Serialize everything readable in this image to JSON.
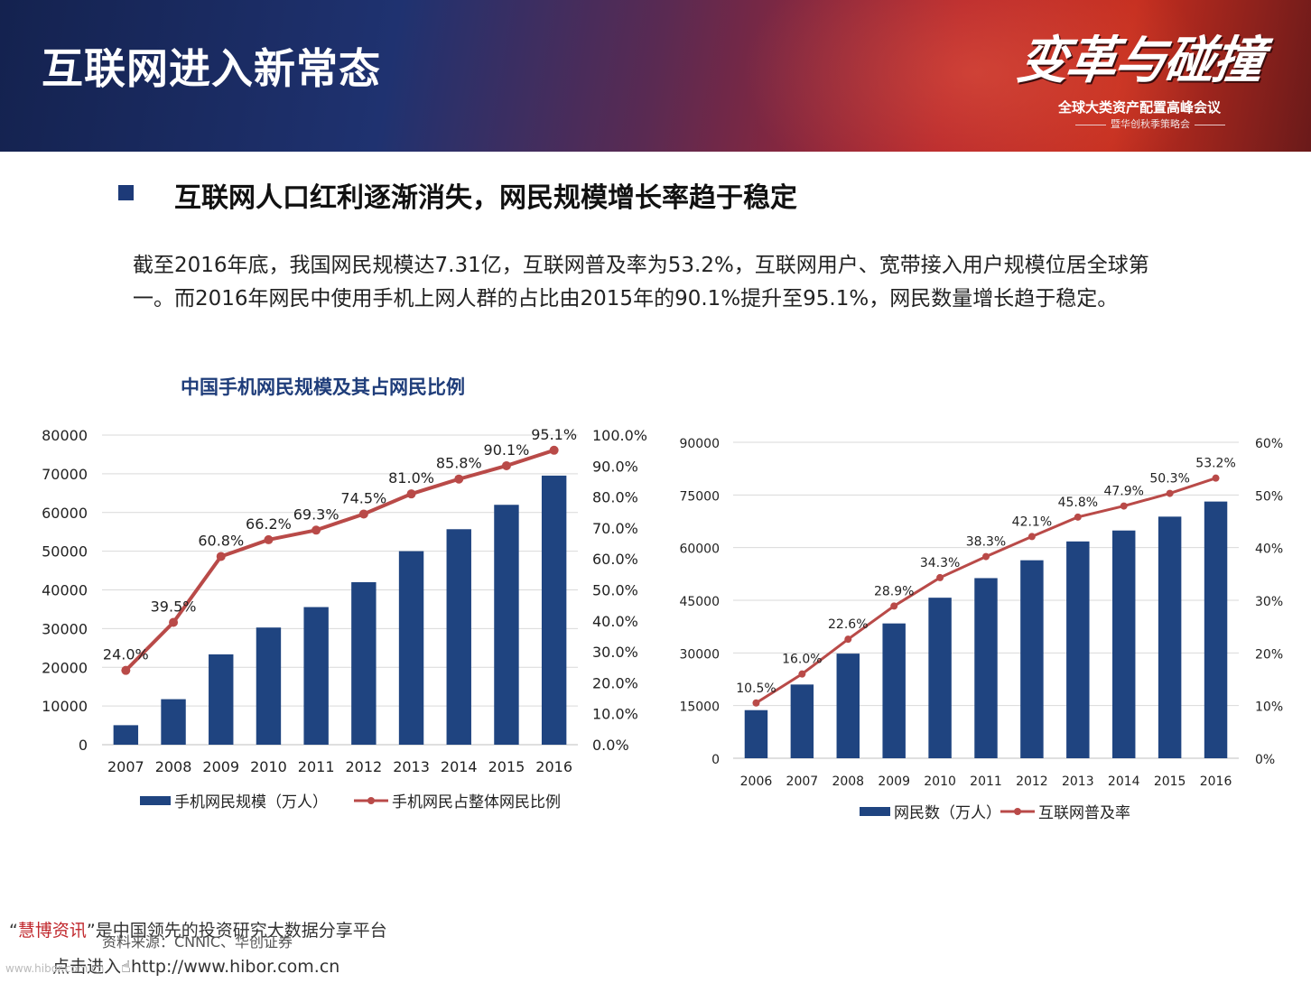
{
  "header": {
    "title": "互联网进入新常态",
    "logo_text": "变革与碰撞",
    "conference_name": "全球大类资产配置高峰会议",
    "conference_sub": "暨华创秋季策略会"
  },
  "section": {
    "heading": "互联网人口红利逐渐消失，网民规模增长率趋于稳定",
    "paragraph": "截至2016年底，我国网民规模达7.31亿，互联网普及率为53.2%，互联网用户、宽带接入用户规模位居全球第一。而2016年网民中使用手机上网人群的占比由2015年的90.1%提升至95.1%，网民数量增长趋于稳定。"
  },
  "chart_data": [
    {
      "type": "bar",
      "title": "中国手机网民规模及其占网民比例",
      "categories": [
        "2007",
        "2008",
        "2009",
        "2010",
        "2011",
        "2012",
        "2013",
        "2014",
        "2015",
        "2016"
      ],
      "series": [
        {
          "name": "手机网民规模（万人）",
          "type": "bar",
          "axis": "left",
          "values": [
            5040,
            11760,
            23344,
            30274,
            35558,
            41997,
            50006,
            55678,
            61981,
            69531
          ]
        },
        {
          "name": "手机网民占整体网民比例",
          "type": "line",
          "axis": "right",
          "values": [
            24.0,
            39.5,
            60.8,
            66.2,
            69.3,
            74.5,
            81.0,
            85.8,
            90.1,
            95.1
          ],
          "labels": [
            "24.0%",
            "39.5%",
            "60.8%",
            "66.2%",
            "69.3%",
            "74.5%",
            "81.0%",
            "85.8%",
            "90.1%",
            "95.1%"
          ]
        }
      ],
      "ylim": [
        0,
        80000
      ],
      "y_ticks": [
        "0",
        "10000",
        "20000",
        "30000",
        "40000",
        "50000",
        "60000",
        "70000",
        "80000"
      ],
      "y2lim": [
        0,
        100
      ],
      "y2_ticks": [
        "0.0%",
        "10.0%",
        "20.0%",
        "30.0%",
        "40.0%",
        "50.0%",
        "60.0%",
        "70.0%",
        "80.0%",
        "90.0%",
        "100.0%"
      ],
      "legend_position": "bottom",
      "colors": {
        "bar": "#1f4480",
        "line": "#b94a48"
      }
    },
    {
      "type": "bar",
      "title": "",
      "categories": [
        "2006",
        "2007",
        "2008",
        "2009",
        "2010",
        "2011",
        "2012",
        "2013",
        "2014",
        "2015",
        "2016"
      ],
      "series": [
        {
          "name": "网民数（万人）",
          "type": "bar",
          "axis": "left",
          "values": [
            13700,
            21000,
            29800,
            38400,
            45730,
            51310,
            56400,
            61758,
            64875,
            68826,
            73125
          ]
        },
        {
          "name": "互联网普及率",
          "type": "line",
          "axis": "right",
          "values": [
            10.5,
            16.0,
            22.6,
            28.9,
            34.3,
            38.3,
            42.1,
            45.8,
            47.9,
            50.3,
            53.2
          ],
          "labels": [
            "10.5%",
            "16.0%",
            "22.6%",
            "28.9%",
            "34.3%",
            "38.3%",
            "42.1%",
            "45.8%",
            "47.9%",
            "50.3%",
            "53.2%"
          ]
        }
      ],
      "ylim": [
        0,
        90000
      ],
      "y_ticks": [
        "0",
        "15000",
        "30000",
        "45000",
        "60000",
        "75000",
        "90000"
      ],
      "y2lim": [
        0,
        60
      ],
      "y2_ticks": [
        "0%",
        "10%",
        "20%",
        "30%",
        "40%",
        "50%",
        "60%"
      ],
      "legend_position": "bottom",
      "colors": {
        "bar": "#1f4480",
        "line": "#b94a48"
      }
    }
  ],
  "source_note": "资料来源：CNNIC、华创证券",
  "footer": {
    "brand": "慧博资讯",
    "open_quote": "“",
    "close_text": "”是中国领先的投资研究大数据分享平台",
    "line2_prefix": "点击进入",
    "line2_url": "http://www.hibor.com.cn",
    "watermark": "www.hibor.com.cn"
  }
}
